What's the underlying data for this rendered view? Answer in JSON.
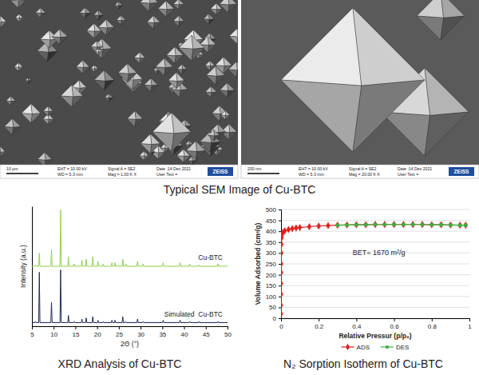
{
  "figure_caption": "Typical SEM Image of Cu-BTC",
  "sem_images": [
    {
      "scale_bar": "10 μm",
      "eht": "EHT = 10.00 kV",
      "wd": "WD = 5.3 mm",
      "signal": "Signal A = SE2",
      "mag": "Mag = 1.00 K X",
      "date": "Date :14 Dec 2021",
      "user_text": "User Text =",
      "brand": "ZEISS"
    },
    {
      "scale_bar": "200 nm",
      "eht": "EHT = 10.00 kV",
      "wd": "WD = 5.3 mm",
      "signal": "Signal A = SE2",
      "mag": "Mag = 20.00 K X",
      "date": "Date :14 Dec 2021",
      "user_text": "User Text =",
      "brand": "ZEISS"
    }
  ],
  "chart_data": [
    {
      "type": "line",
      "title": "XRD Analysis of Cu-BTC",
      "x_label": "2Θ (°)",
      "y_label": "Intensity (a.u.)",
      "x": [
        5,
        5.65,
        5.8,
        5.95,
        6.55,
        6.7,
        6.85,
        9.35,
        9.5,
        9.65,
        11.45,
        11.6,
        11.75,
        13.25,
        13.4,
        13.55,
        14.55,
        14.7,
        14.85,
        16.35,
        16.5,
        16.65,
        17.35,
        17.5,
        17.65,
        18.85,
        19.0,
        19.15,
        20.05,
        20.2,
        20.35,
        21.25,
        21.4,
        21.55,
        23.25,
        23.4,
        23.55,
        23.95,
        24.1,
        24.25,
        25.75,
        25.9,
        26.05,
        26.45,
        26.6,
        26.75,
        29.15,
        29.3,
        29.45,
        30.45,
        30.6,
        30.75,
        35.05,
        35.2,
        35.35,
        38.95,
        39.1,
        39.25,
        41.15,
        41.3,
        41.45,
        43.25,
        43.4,
        43.55,
        47.65,
        47.8,
        47.95,
        50
      ],
      "series": [
        {
          "name": "Cu-BTC",
          "color": "#92d050",
          "values": [
            50,
            50,
            51,
            50,
            50,
            61,
            50,
            50,
            64,
            50,
            50,
            97,
            50,
            50,
            58,
            50,
            50,
            52,
            50,
            50,
            55,
            50,
            50,
            56,
            50,
            50,
            58,
            50,
            50,
            54,
            50,
            50,
            52,
            50,
            50,
            53,
            50,
            50,
            53,
            50,
            50,
            56,
            50,
            50,
            52,
            50,
            50,
            54,
            50,
            50,
            52,
            50,
            50,
            53,
            50,
            50,
            53,
            50,
            50,
            52,
            50,
            50,
            51,
            50,
            50,
            52,
            50,
            50
          ]
        },
        {
          "name": "Simulated  Cu-BTC",
          "color": "#1f2a5c",
          "values": [
            3,
            3,
            4,
            3,
            3,
            45,
            3,
            3,
            20,
            3,
            3,
            47,
            3,
            3,
            9,
            3,
            3,
            4,
            3,
            3,
            6,
            3,
            3,
            7,
            3,
            3,
            8,
            3,
            3,
            5,
            3,
            3,
            4,
            3,
            3,
            5,
            3,
            3,
            5,
            3,
            3,
            8,
            3,
            3,
            4,
            3,
            3,
            6,
            3,
            3,
            4,
            3,
            3,
            5,
            3,
            3,
            5,
            3,
            3,
            4,
            3,
            3,
            4,
            3,
            3,
            4,
            3,
            3
          ]
        }
      ],
      "xlim": [
        5,
        50
      ],
      "xticks": [
        5,
        10,
        15,
        20,
        25,
        30,
        35,
        40,
        45,
        50
      ],
      "ylim": [
        0,
        100
      ],
      "tick_labels": "x",
      "grid": false
    },
    {
      "type": "line",
      "title": "N₂ Sorption Isotherm of Cu-BTC",
      "x_label": "Relative Pressur (p/p₀)",
      "y_label": "Volume Adsorbed (cm³/g)",
      "annotations": [
        "BET= 1670 m²/g"
      ],
      "series": [
        {
          "name": "ADS",
          "color": "#e02020",
          "marker": "diamond",
          "x": [
            0.0001,
            0.0002,
            0.0004,
            0.0006,
            0.0008,
            0.001,
            0.0015,
            0.002,
            0.003,
            0.005,
            0.01,
            0.02,
            0.04,
            0.06,
            0.08,
            0.1,
            0.15,
            0.2,
            0.25,
            0.3,
            0.35,
            0.4,
            0.45,
            0.5,
            0.55,
            0.6,
            0.65,
            0.7,
            0.75,
            0.8,
            0.85,
            0.9,
            0.95,
            0.98
          ],
          "values": [
            20,
            60,
            110,
            160,
            210,
            250,
            300,
            340,
            370,
            385,
            395,
            402,
            408,
            412,
            415,
            417,
            421,
            424,
            426,
            428,
            429,
            430,
            430,
            431,
            431,
            431,
            431,
            431,
            431,
            430,
            430,
            429,
            428,
            428
          ]
        },
        {
          "name": "DES",
          "color": "#3cb043",
          "marker": "square",
          "x": [
            0.98,
            0.95,
            0.9,
            0.85,
            0.8,
            0.75,
            0.7,
            0.65,
            0.6,
            0.55,
            0.5,
            0.45,
            0.4,
            0.35,
            0.3
          ],
          "values": [
            428,
            428,
            429,
            430,
            430,
            431,
            431,
            431,
            431,
            431,
            431,
            430,
            430,
            429,
            428
          ]
        }
      ],
      "xlim": [
        0,
        1
      ],
      "xticks": [
        0,
        0.2,
        0.4,
        0.6,
        0.8,
        1
      ],
      "ylim": [
        0,
        500
      ],
      "yticks": [
        0,
        50,
        100,
        150,
        200,
        250,
        300,
        350,
        400,
        450,
        500
      ],
      "grid": true,
      "legend": "bottom"
    }
  ]
}
